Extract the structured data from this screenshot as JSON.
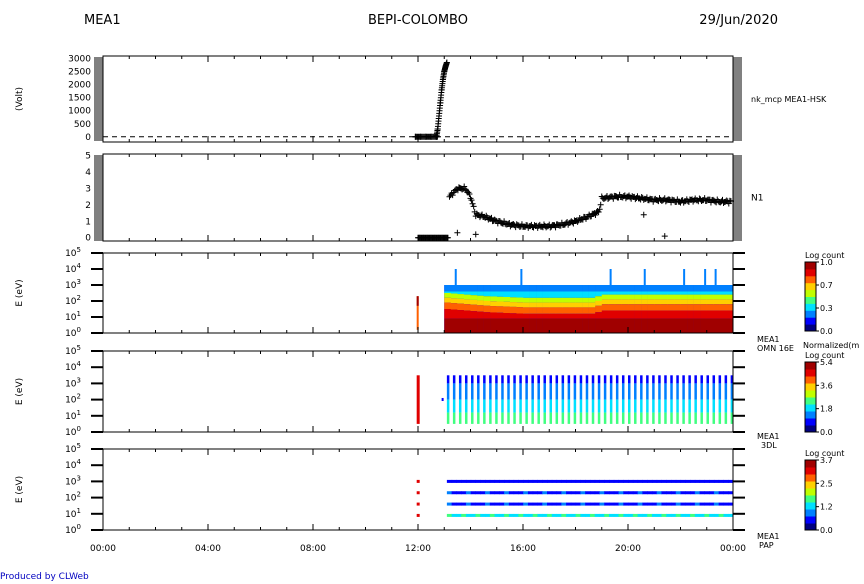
{
  "header": {
    "left": "MEA1",
    "center": "BEPI-COLOMBO",
    "right": "29/Jun/2020"
  },
  "footer": "Produced by CLWeb",
  "x_ticks": [
    "00:00",
    "04:00",
    "08:00",
    "12:00",
    "16:00",
    "20:00",
    "00:00"
  ],
  "colors": {
    "axis": "#000000",
    "footer_text": "#0000c0",
    "colorbar": [
      "#000080",
      "#0000ff",
      "#0080ff",
      "#00e0ff",
      "#40ff80",
      "#c0ff00",
      "#ffd000",
      "#ff6000",
      "#e00000",
      "#a00000"
    ]
  },
  "chart_data": [
    {
      "type": "scatter",
      "ylabel": "(Volt)",
      "right_label": "nk_mcp MEA1-HSK",
      "ylim": [
        -200,
        3100
      ],
      "y_ticks": [
        "0",
        "500",
        "1000",
        "1500",
        "2000",
        "2500",
        "3000"
      ],
      "reference_line": {
        "y": 0,
        "style": "dashed"
      },
      "x_hours": [
        11.9,
        12.1,
        12.3,
        12.5,
        12.7,
        12.75,
        12.8,
        12.85,
        12.9,
        12.95,
        13.0,
        13.05,
        13.1
      ],
      "values": [
        0,
        0,
        0,
        0,
        0,
        300,
        800,
        1300,
        1800,
        2200,
        2500,
        2700,
        2850
      ]
    },
    {
      "type": "scatter",
      "right_label": "N1",
      "ylim": [
        -0.2,
        5.1
      ],
      "y_ticks": [
        "0",
        "1",
        "2",
        "3",
        "4",
        "5"
      ],
      "x_hours": [
        12.0,
        12.5,
        13.0,
        13.2,
        13.5,
        13.8,
        14.0,
        14.2,
        14.5,
        15.0,
        15.5,
        16.0,
        16.5,
        17.0,
        17.5,
        18.0,
        18.5,
        18.9,
        19.0,
        19.5,
        20.0,
        20.5,
        21.0,
        21.5,
        22.0,
        22.5,
        23.0,
        23.5,
        24.0
      ],
      "values": [
        0.0,
        0.0,
        0.0,
        2.5,
        3.0,
        3.0,
        2.5,
        1.4,
        1.3,
        1.0,
        0.8,
        0.7,
        0.7,
        0.7,
        0.8,
        1.0,
        1.3,
        1.6,
        2.4,
        2.5,
        2.5,
        2.4,
        2.3,
        2.3,
        2.2,
        2.3,
        2.3,
        2.2,
        2.2
      ],
      "outliers": [
        {
          "x": 13.5,
          "y": 0.3
        },
        {
          "x": 14.2,
          "y": 0.2
        },
        {
          "x": 20.6,
          "y": 1.4
        },
        {
          "x": 21.4,
          "y": 0.1
        }
      ]
    },
    {
      "type": "heatmap",
      "ylabel": "E (eV)",
      "yscale": "log",
      "ylim_exp": [
        0,
        5
      ],
      "right_label": [
        "MEA1",
        "OMN 16E"
      ],
      "colorbar": {
        "title": "Log count",
        "ticks": [
          "0.0",
          "0.3",
          "0.7",
          "1.0"
        ]
      },
      "data_start_hour": 13.0,
      "low_energy_band_exp": [
        0.0,
        0.9
      ],
      "mid_band_exp": [
        0.9,
        1.9
      ],
      "peak_energy_exp_by_hour": [
        {
          "x": 13.0,
          "y": 1.9
        },
        {
          "x": 14.5,
          "y": 1.7
        },
        {
          "x": 16.0,
          "y": 1.6
        },
        {
          "x": 18.5,
          "y": 1.6
        },
        {
          "x": 19.0,
          "y": 1.8
        },
        {
          "x": 24.0,
          "y": 1.8
        }
      ]
    },
    {
      "type": "heatmap",
      "ylabel": "E (eV)",
      "yscale": "log",
      "ylim_exp": [
        0,
        5
      ],
      "right_label": [
        "MEA1",
        "3DL"
      ],
      "colorbar_top_label": "Normalized(m",
      "colorbar": {
        "title": "Log count",
        "ticks": [
          "0.0",
          "1.8",
          "3.6",
          "5.4"
        ]
      },
      "stripe_start_hour": 13.1,
      "stripe_period_hours": 0.23,
      "stripe_energy_exp": [
        0.5,
        3.5
      ]
    },
    {
      "type": "heatmap",
      "ylabel": "E (eV)",
      "yscale": "log",
      "ylim_exp": [
        0,
        5
      ],
      "right_label": [
        "MEA1",
        "PAP"
      ],
      "colorbar": {
        "title": "Log count",
        "ticks": [
          "0.0",
          "1.2",
          "2.5",
          "3.7"
        ]
      },
      "lines_start_hour": 13.1,
      "line_energy_exp": [
        0.9,
        1.6,
        2.3,
        3.0
      ]
    }
  ]
}
